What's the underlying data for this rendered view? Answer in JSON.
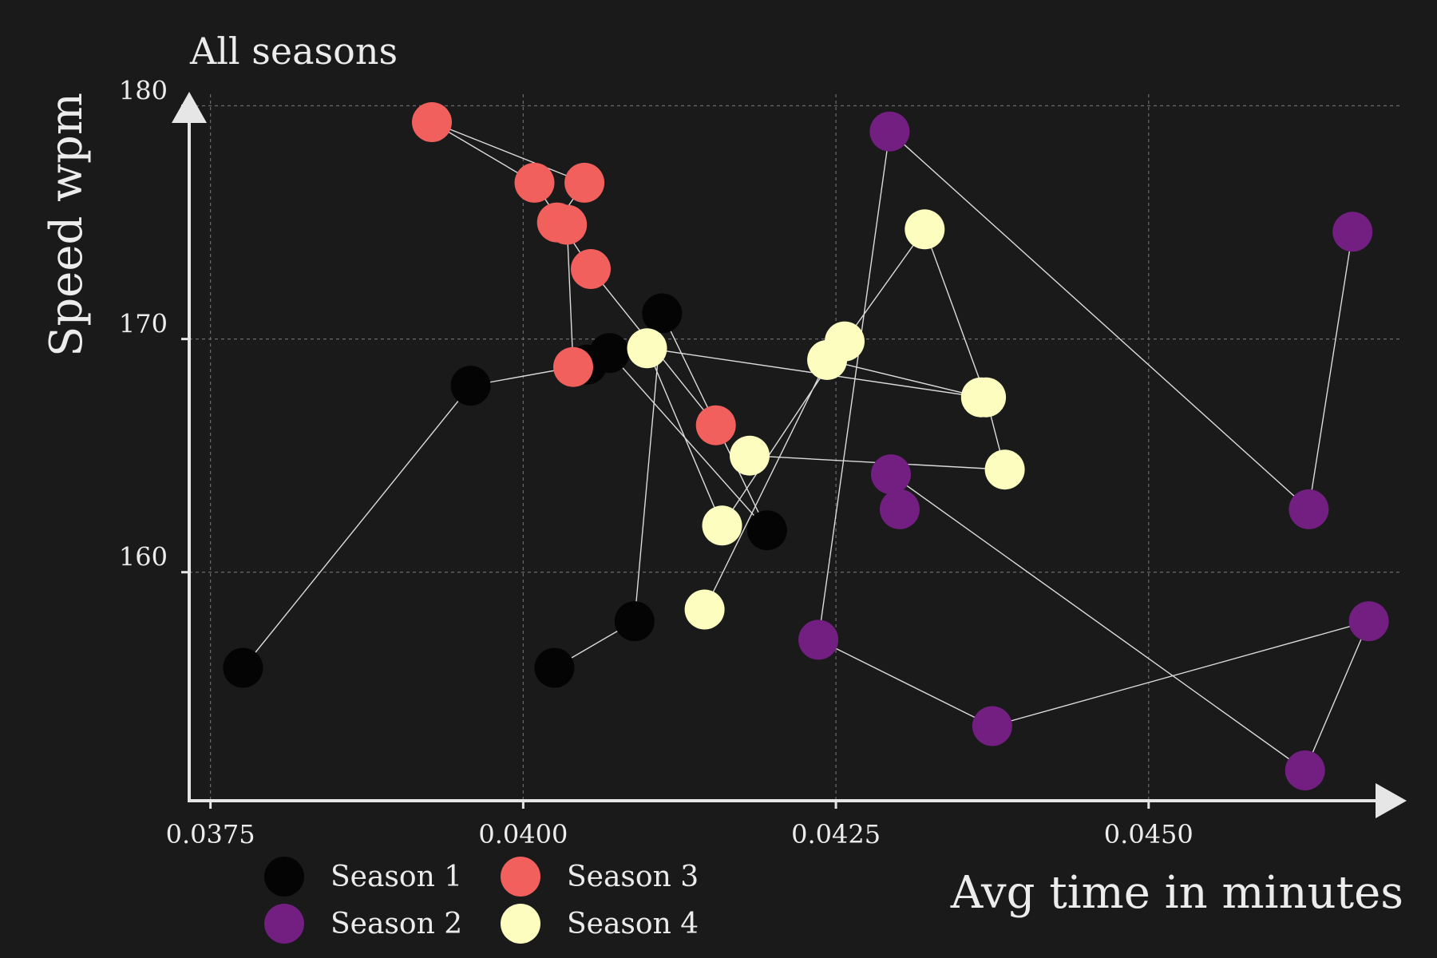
{
  "chart_data": {
    "type": "scatter",
    "title": "All seasons",
    "xlabel": "Avg time in minutes",
    "ylabel": "Speed wpm",
    "xlim": [
      0.03733,
      0.04705
    ],
    "ylim": [
      150.2,
      180.6
    ],
    "x_ticks": [
      0.0375,
      0.04,
      0.0425,
      0.045
    ],
    "x_tick_labels": [
      "0.0375",
      "0.0400",
      "0.0425",
      "0.0450"
    ],
    "y_ticks": [
      160,
      170,
      180
    ],
    "y_tick_labels": [
      "160",
      "170",
      "180"
    ],
    "grid": true,
    "legend_position": "bottom-left",
    "series": [
      {
        "name": "Season 1",
        "color": "#040404",
        "points": [
          {
            "x": 0.04025,
            "y": 155.9
          },
          {
            "x": 0.04089,
            "y": 157.9
          },
          {
            "x": 0.04111,
            "y": 171.1
          },
          {
            "x": 0.04195,
            "y": 161.8
          },
          {
            "x": 0.04069,
            "y": 169.4
          },
          {
            "x": 0.04051,
            "y": 168.9
          },
          {
            "x": 0.03958,
            "y": 168.0
          },
          {
            "x": 0.03776,
            "y": 155.9
          }
        ]
      },
      {
        "name": "Season 2",
        "color": "#721f81",
        "points": [
          {
            "x": 0.04663,
            "y": 174.6
          },
          {
            "x": 0.04628,
            "y": 162.7
          },
          {
            "x": 0.04293,
            "y": 178.9
          },
          {
            "x": 0.04236,
            "y": 157.1
          },
          {
            "x": 0.04375,
            "y": 153.4
          },
          {
            "x": 0.04676,
            "y": 157.9
          },
          {
            "x": 0.04625,
            "y": 151.5
          },
          {
            "x": 0.04294,
            "y": 164.2
          },
          {
            "x": 0.04301,
            "y": 162.7
          }
        ]
      },
      {
        "name": "Season 3",
        "color": "#f1605d",
        "points": [
          {
            "x": 0.04154,
            "y": 166.3
          },
          {
            "x": 0.04054,
            "y": 173.0
          },
          {
            "x": 0.04009,
            "y": 176.7
          },
          {
            "x": 0.03927,
            "y": 179.3
          },
          {
            "x": 0.04049,
            "y": 176.7
          },
          {
            "x": 0.04027,
            "y": 175.0
          },
          {
            "x": 0.04035,
            "y": 174.9
          },
          {
            "x": 0.0404,
            "y": 168.8
          }
        ]
      },
      {
        "name": "Season 4",
        "color": "#fcfdbf",
        "points": [
          {
            "x": 0.04145,
            "y": 158.4
          },
          {
            "x": 0.04243,
            "y": 169.1
          },
          {
            "x": 0.04366,
            "y": 167.5
          },
          {
            "x": 0.04099,
            "y": 169.6
          },
          {
            "x": 0.04159,
            "y": 162.0
          },
          {
            "x": 0.04257,
            "y": 169.9
          },
          {
            "x": 0.04321,
            "y": 174.7
          },
          {
            "x": 0.0437,
            "y": 167.5
          },
          {
            "x": 0.04385,
            "y": 164.4
          },
          {
            "x": 0.04181,
            "y": 165.0
          }
        ]
      }
    ]
  },
  "legend": {
    "items": [
      {
        "label": "Season 1",
        "color": "#040404"
      },
      {
        "label": "Season 2",
        "color": "#721f81"
      },
      {
        "label": "Season 3",
        "color": "#f1605d"
      },
      {
        "label": "Season 4",
        "color": "#fcfdbf"
      }
    ]
  }
}
